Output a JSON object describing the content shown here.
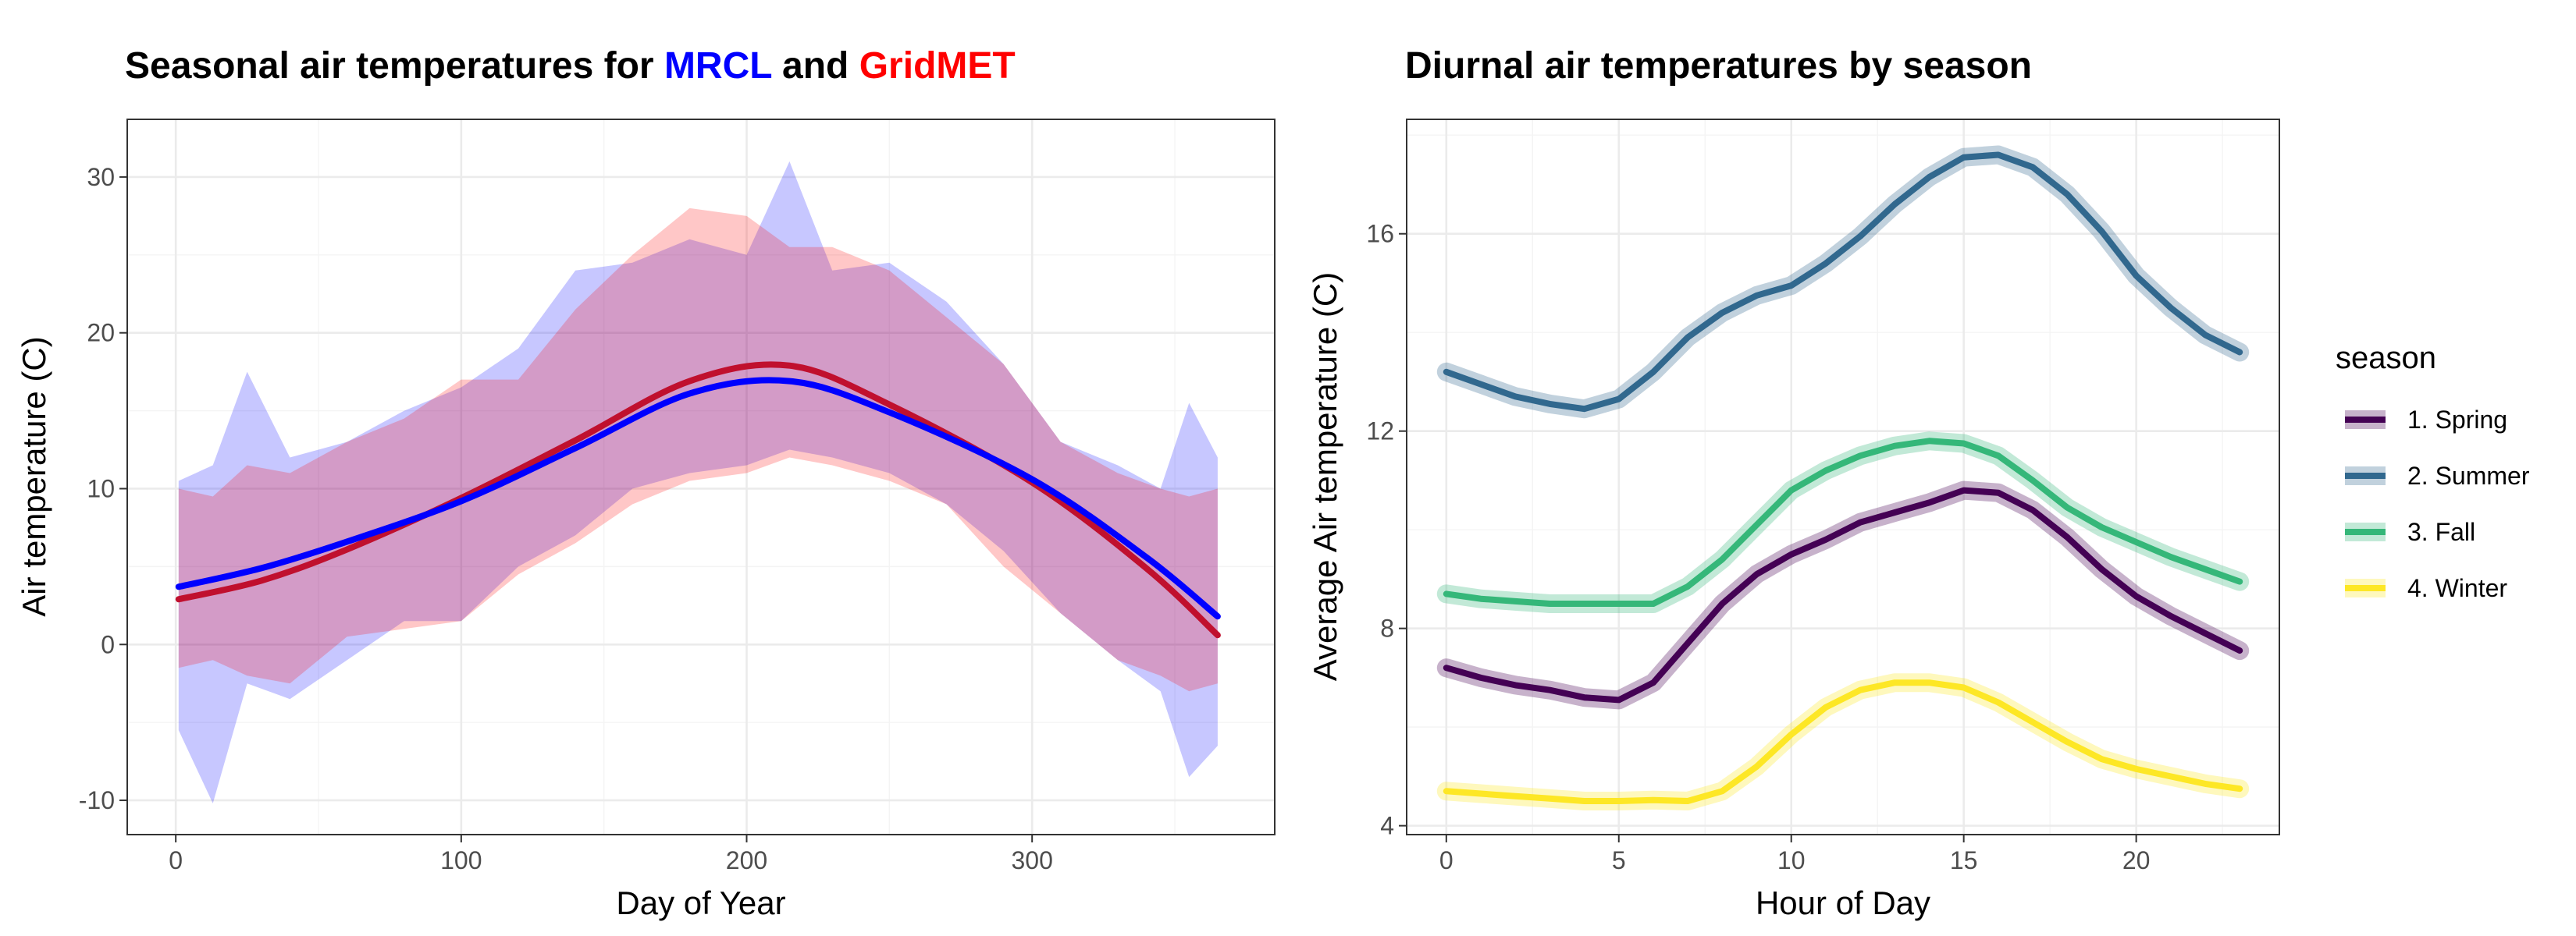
{
  "chart_data": [
    {
      "type": "area",
      "title_parts": [
        {
          "text": "Seasonal air temperatures for ",
          "color": "#000000"
        },
        {
          "text": "MRCL",
          "color": "#0000ff"
        },
        {
          "text": " and ",
          "color": "#000000"
        },
        {
          "text": "GridMET",
          "color": "#ff0000"
        }
      ],
      "xlabel": "Day of Year",
      "ylabel": "Air temperature (C)",
      "xlim": [
        -17,
        385
      ],
      "ylim": [
        -12.2,
        33.7
      ],
      "xticks": [
        0,
        100,
        200,
        300
      ],
      "yticks": [
        -10,
        0,
        10,
        20,
        30
      ],
      "grid": true,
      "series": [
        {
          "name": "MRCL",
          "color": "#0000ff",
          "ribbon_alpha": 0.22,
          "smooth": {
            "x": [
              1,
              30,
              60,
              100,
              140,
              180,
              215,
              250,
              300,
              340,
              365
            ],
            "y": [
              3.7,
              4.9,
              6.6,
              9.2,
              12.6,
              16.1,
              16.9,
              14.9,
              10.6,
              5.6,
              1.8
            ]
          },
          "range": {
            "x": [
              1,
              13,
              25,
              40,
              60,
              80,
              100,
              120,
              140,
              160,
              180,
              200,
              215,
              230,
              250,
              270,
              290,
              310,
              330,
              345,
              355,
              365
            ],
            "min": [
              -5.5,
              -10.2,
              -2.5,
              -3.5,
              -1.0,
              1.5,
              1.5,
              5.0,
              7.0,
              10.0,
              11.0,
              11.5,
              12.5,
              12.0,
              11.0,
              9.0,
              6.0,
              2.0,
              -1.0,
              -3.0,
              -8.5,
              -6.5
            ],
            "max": [
              10.5,
              11.5,
              17.5,
              12.0,
              13.0,
              15.0,
              16.5,
              19.0,
              24.0,
              24.5,
              26.0,
              25.0,
              31.0,
              24.0,
              24.5,
              22.0,
              18.0,
              13.0,
              11.5,
              10.0,
              15.5,
              12.0
            ]
          }
        },
        {
          "name": "GridMET",
          "color": "#ff0000",
          "line_color": "#c0102e",
          "ribbon_alpha": 0.22,
          "smooth": {
            "x": [
              1,
              30,
              60,
              100,
              140,
              180,
              215,
              250,
              300,
              340,
              365
            ],
            "y": [
              2.9,
              4.1,
              6.1,
              9.4,
              13.1,
              16.9,
              17.9,
              15.4,
              10.4,
              4.9,
              0.6
            ]
          },
          "range": {
            "x": [
              1,
              13,
              25,
              40,
              60,
              80,
              100,
              120,
              140,
              160,
              180,
              200,
              215,
              230,
              250,
              270,
              290,
              310,
              330,
              345,
              355,
              365
            ],
            "min": [
              -1.5,
              -1.0,
              -2.0,
              -2.5,
              0.5,
              1.0,
              1.5,
              4.5,
              6.5,
              9.0,
              10.5,
              11.0,
              12.0,
              11.5,
              10.5,
              9.0,
              5.0,
              2.0,
              -1.0,
              -2.0,
              -3.0,
              -2.5
            ],
            "max": [
              10.0,
              9.5,
              11.5,
              11.0,
              13.0,
              14.5,
              17.0,
              17.0,
              21.5,
              25.0,
              28.0,
              27.5,
              25.5,
              25.5,
              24.0,
              21.0,
              18.0,
              13.0,
              11.0,
              10.0,
              9.5,
              10.0
            ]
          }
        }
      ]
    },
    {
      "type": "line",
      "title": "Diurnal air temperatures by season",
      "xlabel": "Hour of Day",
      "ylabel": "Average Air temperature (C)",
      "xlim": [
        -1.15,
        24.15
      ],
      "ylim": [
        3.82,
        18.32
      ],
      "xticks": [
        0,
        5,
        10,
        15,
        20
      ],
      "yticks": [
        4,
        8,
        12,
        16
      ],
      "grid": true,
      "legend_title": "season",
      "legend_position": "right",
      "x": [
        0,
        1,
        2,
        3,
        4,
        5,
        6,
        7,
        8,
        9,
        10,
        11,
        12,
        13,
        14,
        15,
        16,
        17,
        18,
        19,
        20,
        21,
        22,
        23
      ],
      "series": [
        {
          "name": "1. Spring",
          "color": "#440154",
          "values": [
            7.2,
            7.0,
            6.85,
            6.75,
            6.6,
            6.55,
            6.9,
            7.7,
            8.5,
            9.1,
            9.5,
            9.8,
            10.15,
            10.35,
            10.55,
            10.8,
            10.75,
            10.4,
            9.85,
            9.2,
            8.65,
            8.25,
            7.9,
            7.55
          ]
        },
        {
          "name": "2. Summer",
          "color": "#31688e",
          "values": [
            13.2,
            12.95,
            12.7,
            12.55,
            12.45,
            12.65,
            13.2,
            13.9,
            14.4,
            14.75,
            14.95,
            15.4,
            15.95,
            16.6,
            17.15,
            17.55,
            17.6,
            17.35,
            16.8,
            16.05,
            15.15,
            14.5,
            13.95,
            13.6
          ]
        },
        {
          "name": "3. Fall",
          "color": "#35b779",
          "values": [
            8.7,
            8.6,
            8.55,
            8.5,
            8.5,
            8.5,
            8.5,
            8.85,
            9.4,
            10.1,
            10.8,
            11.2,
            11.5,
            11.7,
            11.8,
            11.75,
            11.5,
            11.0,
            10.45,
            10.05,
            9.75,
            9.45,
            9.2,
            8.95
          ]
        },
        {
          "name": "4. Winter",
          "color": "#fde725",
          "values": [
            4.7,
            4.65,
            4.6,
            4.55,
            4.5,
            4.5,
            4.52,
            4.5,
            4.7,
            5.2,
            5.85,
            6.4,
            6.75,
            6.9,
            6.9,
            6.8,
            6.5,
            6.1,
            5.7,
            5.35,
            5.15,
            5.0,
            4.85,
            4.75
          ]
        }
      ]
    }
  ]
}
